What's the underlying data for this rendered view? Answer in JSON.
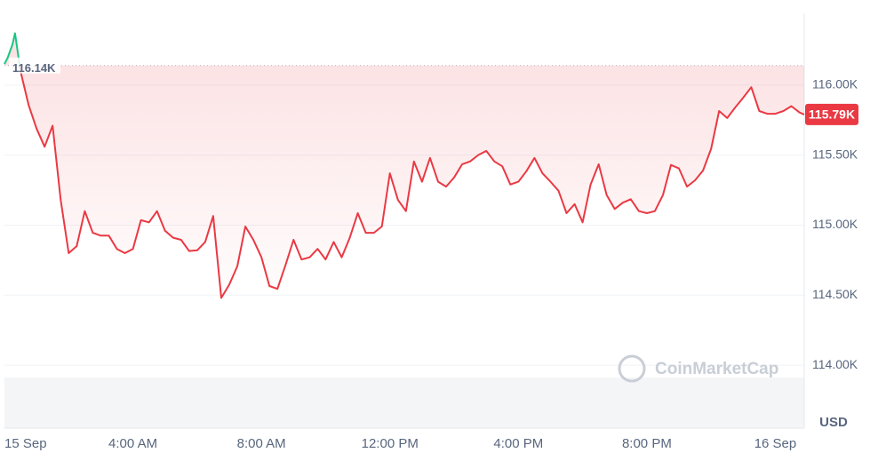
{
  "chart_data": {
    "type": "line",
    "x": [
      0,
      0.1,
      0.25,
      0.33,
      0.5,
      0.75,
      1,
      1.25,
      1.5,
      1.75,
      2,
      2.25,
      2.5,
      2.75,
      3,
      3.25,
      3.5,
      3.75,
      4,
      4.25,
      4.5,
      4.75,
      5,
      5.25,
      5.5,
      5.75,
      6,
      6.25,
      6.5,
      6.75,
      7,
      7.25,
      7.5,
      7.75,
      8,
      8.25,
      8.5,
      8.75,
      9,
      9.25,
      9.5,
      9.75,
      10,
      10.25,
      10.5,
      10.75,
      11,
      11.25,
      11.5,
      11.75,
      12,
      12.25,
      12.5,
      12.75,
      13,
      13.25,
      13.5,
      13.75,
      14,
      14.25,
      14.5,
      14.75,
      15,
      15.25,
      15.5,
      15.75,
      16,
      16.25,
      16.5,
      16.75,
      17,
      17.25,
      17.5,
      17.75,
      18,
      18.25,
      18.5,
      18.75,
      19,
      19.25,
      19.5,
      19.75,
      20,
      20.25,
      20.5,
      20.75,
      21,
      21.25,
      21.5,
      21.75,
      22,
      22.25,
      22.5,
      22.75,
      23,
      23.25,
      23.5,
      23.75,
      24,
      24.25,
      24.5,
      24.75,
      24.9
    ],
    "series": [
      {
        "color": "#ea3943",
        "values": [
          116150,
          116195,
          116290,
          116370,
          116100,
          115860,
          115690,
          115560,
          115710,
          115180,
          114800,
          114850,
          115100,
          114945,
          114925,
          114925,
          114830,
          114800,
          114830,
          115035,
          115020,
          115100,
          114960,
          114910,
          114895,
          114815,
          114820,
          114880,
          115065,
          114480,
          114575,
          114705,
          114990,
          114895,
          114770,
          114565,
          114545,
          114715,
          114895,
          114755,
          114770,
          114830,
          114755,
          114880,
          114770,
          114910,
          115085,
          114945,
          114945,
          114990,
          115370,
          115180,
          115100,
          115455,
          115310,
          115480,
          115310,
          115275,
          115340,
          115435,
          115455,
          115500,
          115530,
          115455,
          115420,
          115290,
          115310,
          115385,
          115480,
          115370,
          115310,
          115245,
          115085,
          115150,
          115020,
          115290,
          115435,
          115215,
          115115,
          115160,
          115185,
          115100,
          115085,
          115100,
          115215,
          115430,
          115405,
          115275,
          115320,
          115390,
          115545,
          115815,
          115765,
          115840,
          115910,
          115985,
          115815,
          115795,
          115795,
          115815,
          115850,
          115805,
          115790
        ]
      }
    ],
    "above_color": "#16c784",
    "xlim": [
      0,
      24.9
    ],
    "xticks": [
      {
        "value": 0,
        "label": "15 Sep"
      },
      {
        "value": 4,
        "label": "4:00 AM"
      },
      {
        "value": 8,
        "label": "8:00 AM"
      },
      {
        "value": 12,
        "label": "12:00 PM"
      },
      {
        "value": 16,
        "label": "4:00 PM"
      },
      {
        "value": 20,
        "label": "8:00 PM"
      },
      {
        "value": 24,
        "label": "16 Sep"
      }
    ],
    "ylim": [
      113550,
      116500
    ],
    "yticks": [
      {
        "value": 114000,
        "label": "114.00K"
      },
      {
        "value": 114500,
        "label": "114.50K"
      },
      {
        "value": 115000,
        "label": "115.00K"
      },
      {
        "value": 115500,
        "label": "115.50K"
      },
      {
        "value": 116000,
        "label": "116.00K"
      }
    ],
    "grid": true,
    "reference": {
      "value": 116140,
      "label": "116.14K"
    },
    "current_price": {
      "value": 115790,
      "label": "115.79K"
    },
    "y_unit": "USD",
    "watermark": "CoinMarketCap"
  }
}
